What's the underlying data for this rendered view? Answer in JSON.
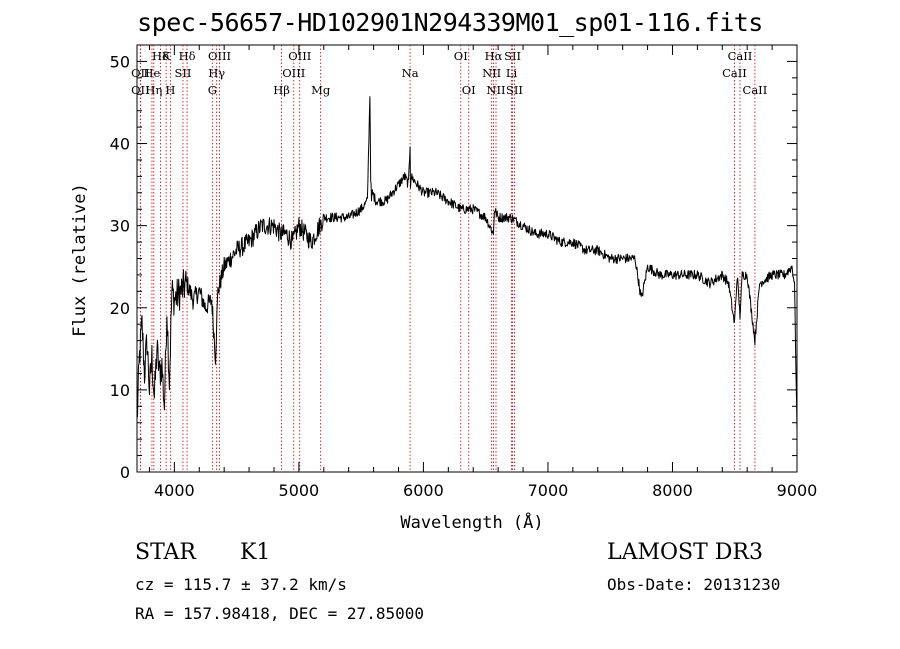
{
  "chart_data": {
    "type": "line",
    "title": "spec-56657-HD102901N294339M01_sp01-116.fits",
    "xlabel": "Wavelength (Å)",
    "ylabel": "Flux (relative)",
    "xlim": [
      3700,
      9000
    ],
    "ylim": [
      0,
      52
    ],
    "xticks": [
      4000,
      5000,
      6000,
      7000,
      8000,
      9000
    ],
    "yticks": [
      0,
      10,
      20,
      30,
      40,
      50
    ],
    "series": [
      {
        "name": "flux",
        "x": [
          3700,
          3720,
          3740,
          3760,
          3780,
          3800,
          3820,
          3840,
          3860,
          3880,
          3900,
          3920,
          3940,
          3960,
          3980,
          4000,
          4050,
          4100,
          4150,
          4200,
          4250,
          4300,
          4330,
          4350,
          4400,
          4450,
          4500,
          4600,
          4700,
          4800,
          4850,
          4900,
          4950,
          5000,
          5100,
          5200,
          5300,
          5400,
          5500,
          5550,
          5570,
          5577,
          5583,
          5590,
          5620,
          5700,
          5800,
          5850,
          5880,
          5893,
          5896,
          5900,
          5950,
          6000,
          6100,
          6200,
          6300,
          6400,
          6500,
          6562,
          6570,
          6600,
          6700,
          6800,
          6900,
          7000,
          7100,
          7200,
          7300,
          7400,
          7500,
          7600,
          7700,
          7750,
          7800,
          7900,
          8000,
          8100,
          8200,
          8300,
          8400,
          8450,
          8498,
          8520,
          8542,
          8560,
          8600,
          8662,
          8700,
          8800,
          8900,
          8960,
          8980,
          9000
        ],
        "y": [
          6,
          14,
          18,
          12,
          16,
          10,
          14,
          9,
          15,
          12,
          13,
          8,
          20,
          11,
          22,
          21,
          22,
          23,
          21,
          22,
          20,
          21,
          14,
          22,
          25,
          26,
          27,
          28,
          30,
          30,
          29,
          29,
          28,
          30,
          28,
          31,
          31,
          31,
          32,
          33,
          46,
          36,
          33,
          34,
          33,
          33,
          35,
          36,
          35,
          40,
          35,
          36,
          35,
          34,
          34,
          33,
          32,
          32,
          31,
          29,
          32,
          31,
          31,
          30,
          29,
          29,
          28,
          28,
          27,
          27,
          26,
          26,
          26,
          21,
          25,
          24,
          24,
          24,
          24,
          23,
          24,
          23,
          18,
          24,
          19,
          24,
          24,
          16,
          23,
          24,
          24,
          25,
          23,
          5
        ]
      }
    ],
    "lines": [
      {
        "label": "Hδ",
        "x": 3889,
        "row": 0
      },
      {
        "label": "K",
        "x": 3934,
        "row": 0
      },
      {
        "label": "Hδ",
        "x": 4102,
        "row": 0
      },
      {
        "label": "OII",
        "x": 3727,
        "row": 1
      },
      {
        "label": "He",
        "x": 3820,
        "row": 1
      },
      {
        "label": "SII",
        "x": 4069,
        "row": 1
      },
      {
        "label": "OIII",
        "x": 4363,
        "row": 0
      },
      {
        "label": "Hγ",
        "x": 4340,
        "row": 1
      },
      {
        "label": "OII",
        "x": 3727,
        "row": 2
      },
      {
        "label": "Hη",
        "x": 3835,
        "row": 2
      },
      {
        "label": "H",
        "x": 3968,
        "row": 2
      },
      {
        "label": "G",
        "x": 4305,
        "row": 2
      },
      {
        "label": "OIII",
        "x": 5007,
        "row": 0
      },
      {
        "label": "OIII",
        "x": 4959,
        "row": 1
      },
      {
        "label": "Hβ",
        "x": 4861,
        "row": 2
      },
      {
        "label": "Mg",
        "x": 5175,
        "row": 2
      },
      {
        "label": "Na",
        "x": 5893,
        "row": 1
      },
      {
        "label": "OI",
        "x": 6300,
        "row": 0
      },
      {
        "label": "OI",
        "x": 6364,
        "row": 2
      },
      {
        "label": "Hα",
        "x": 6563,
        "row": 0
      },
      {
        "label": "SII",
        "x": 6716,
        "row": 0
      },
      {
        "label": "NII",
        "x": 6548,
        "row": 1
      },
      {
        "label": "Li",
        "x": 6708,
        "row": 1
      },
      {
        "label": "NII",
        "x": 6583,
        "row": 2
      },
      {
        "label": "SII",
        "x": 6731,
        "row": 2
      },
      {
        "label": "CaII",
        "x": 8542,
        "row": 0
      },
      {
        "label": "CaII",
        "x": 8498,
        "row": 1
      },
      {
        "label": "CaII",
        "x": 8662,
        "row": 2
      }
    ],
    "line_color": "#cc0000"
  },
  "classification": {
    "type": "STAR",
    "subclass": "K1"
  },
  "survey": "LAMOST DR3",
  "redshift_text": "cz = 115.7 ± 37.2 km/s",
  "obs_date_text": "Obs-Date: 20131230",
  "coords_text": "RA = 157.98418, DEC =  27.85000"
}
